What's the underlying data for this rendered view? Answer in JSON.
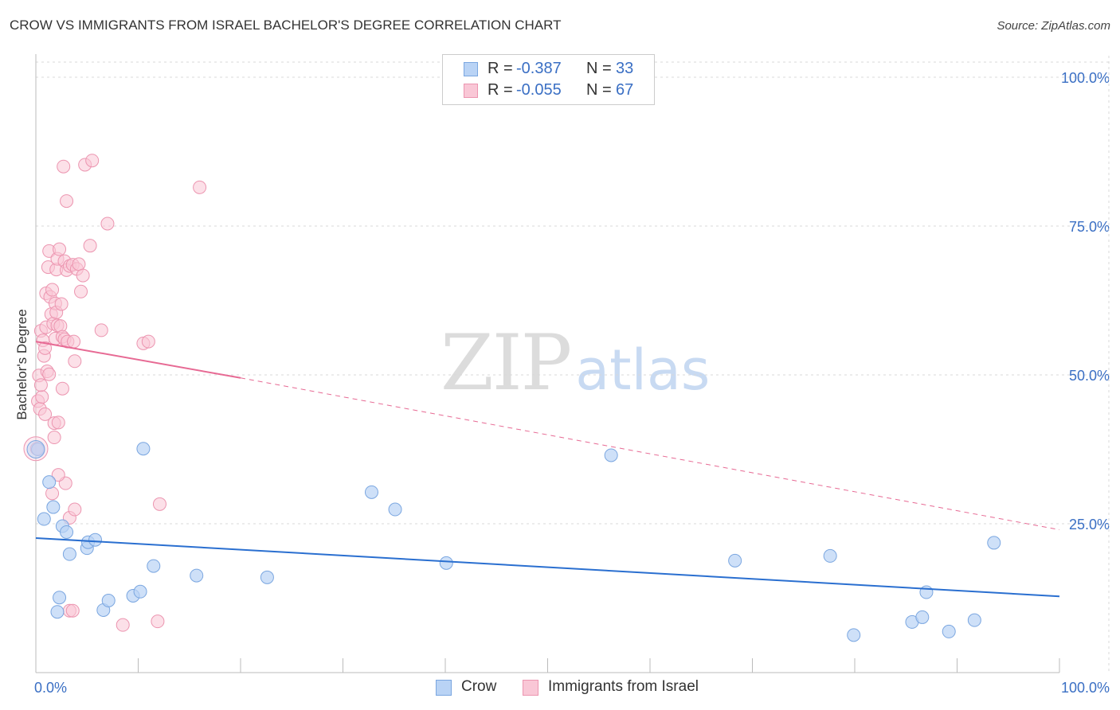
{
  "title": "CROW VS IMMIGRANTS FROM ISRAEL BACHELOR'S DEGREE CORRELATION CHART",
  "source": "Source: ZipAtlas.com",
  "watermark": {
    "zip": "ZIP",
    "atlas": "atlas"
  },
  "legend": {
    "r_label": "R =",
    "n_label": "N =",
    "series": [
      {
        "name": "Crow",
        "r": "-0.387",
        "n": "33"
      },
      {
        "name": "Immigrants from Israel",
        "r": "-0.055",
        "n": "67"
      }
    ]
  },
  "colors": {
    "crow_fill": "#b9d3f5",
    "crow_stroke": "#7aa6e0",
    "crow_line": "#2a6fd0",
    "israel_fill": "#f9c7d6",
    "israel_stroke": "#ec95b0",
    "israel_line": "#e76a94",
    "tick_label": "#3a6fc4",
    "grid": "#d8d8d8"
  },
  "chart_data": {
    "type": "scatter",
    "title": "CROW VS IMMIGRANTS FROM ISRAEL BACHELOR'S DEGREE CORRELATION CHART",
    "xlabel": "",
    "ylabel": "Bachelor's Degree",
    "xlim": [
      0,
      100
    ],
    "ylim": [
      0,
      100
    ],
    "x_tick_labels": [
      "0.0%",
      "100.0%"
    ],
    "y_ticks": [
      25,
      50,
      75,
      100
    ],
    "y_tick_labels": [
      "25.0%",
      "50.0%",
      "75.0%",
      "100.0%"
    ],
    "grid": true,
    "series": [
      {
        "name": "Crow",
        "points": [
          [
            0.2,
            37.5
          ],
          [
            0.8,
            25.8
          ],
          [
            1.3,
            32.0
          ],
          [
            1.7,
            27.8
          ],
          [
            2.1,
            10.2
          ],
          [
            2.3,
            12.6
          ],
          [
            2.6,
            24.6
          ],
          [
            3.0,
            23.6
          ],
          [
            3.3,
            19.9
          ],
          [
            5.0,
            20.9
          ],
          [
            5.1,
            21.9
          ],
          [
            5.8,
            22.3
          ],
          [
            6.6,
            10.5
          ],
          [
            7.1,
            12.1
          ],
          [
            9.5,
            12.9
          ],
          [
            10.2,
            13.6
          ],
          [
            10.5,
            37.6
          ],
          [
            11.5,
            17.9
          ],
          [
            15.7,
            16.3
          ],
          [
            22.6,
            16.0
          ],
          [
            32.8,
            30.3
          ],
          [
            35.1,
            27.4
          ],
          [
            40.1,
            18.4
          ],
          [
            56.2,
            36.5
          ],
          [
            68.3,
            18.8
          ],
          [
            77.6,
            19.6
          ],
          [
            79.9,
            6.3
          ],
          [
            85.6,
            8.5
          ],
          [
            86.6,
            9.3
          ],
          [
            87.0,
            13.5
          ],
          [
            89.2,
            6.9
          ],
          [
            91.7,
            8.8
          ],
          [
            93.6,
            21.8
          ]
        ],
        "trend": {
          "x0": 0,
          "y0": 22.6,
          "x1": 100,
          "y1": 12.8
        }
      },
      {
        "name": "Immigrants from Israel",
        "points": [
          [
            0.1,
            37.6
          ],
          [
            0.2,
            45.6
          ],
          [
            0.3,
            49.9
          ],
          [
            0.4,
            44.3
          ],
          [
            0.5,
            57.4
          ],
          [
            0.6,
            46.3
          ],
          [
            0.7,
            55.8
          ],
          [
            0.8,
            53.2
          ],
          [
            0.9,
            54.5
          ],
          [
            1.0,
            63.7
          ],
          [
            1.0,
            58.0
          ],
          [
            1.1,
            50.6
          ],
          [
            1.2,
            68.1
          ],
          [
            1.3,
            70.8
          ],
          [
            1.3,
            50.1
          ],
          [
            1.4,
            63.1
          ],
          [
            1.5,
            60.2
          ],
          [
            1.6,
            64.3
          ],
          [
            1.7,
            58.6
          ],
          [
            1.8,
            41.9
          ],
          [
            1.9,
            62.0
          ],
          [
            1.9,
            56.1
          ],
          [
            2.0,
            67.7
          ],
          [
            2.0,
            60.5
          ],
          [
            2.1,
            69.5
          ],
          [
            2.1,
            58.3
          ],
          [
            2.2,
            42.0
          ],
          [
            2.3,
            71.1
          ],
          [
            2.4,
            58.2
          ],
          [
            2.5,
            61.9
          ],
          [
            2.6,
            56.4
          ],
          [
            2.6,
            47.7
          ],
          [
            2.7,
            85.0
          ],
          [
            2.8,
            56.0
          ],
          [
            2.8,
            69.1
          ],
          [
            2.9,
            31.8
          ],
          [
            3.0,
            79.2
          ],
          [
            3.0,
            67.6
          ],
          [
            3.1,
            55.6
          ],
          [
            3.3,
            68.3
          ],
          [
            3.3,
            26.0
          ],
          [
            3.3,
            10.4
          ],
          [
            3.6,
            68.5
          ],
          [
            3.6,
            10.4
          ],
          [
            3.7,
            55.6
          ],
          [
            3.8,
            52.3
          ],
          [
            3.8,
            27.4
          ],
          [
            4.0,
            67.8
          ],
          [
            4.2,
            68.6
          ],
          [
            4.6,
            66.7
          ],
          [
            4.8,
            85.3
          ],
          [
            5.3,
            71.7
          ],
          [
            5.5,
            86.0
          ],
          [
            6.4,
            57.5
          ],
          [
            7.0,
            75.4
          ],
          [
            8.5,
            8.0
          ],
          [
            10.5,
            55.3
          ],
          [
            11.0,
            55.6
          ],
          [
            11.9,
            8.6
          ],
          [
            12.1,
            28.3
          ],
          [
            16.0,
            81.5
          ],
          [
            2.2,
            33.2
          ],
          [
            1.8,
            39.5
          ],
          [
            0.9,
            43.4
          ],
          [
            1.6,
            30.1
          ],
          [
            4.4,
            64.0
          ],
          [
            0.5,
            48.3
          ]
        ],
        "trend_solid": {
          "x0": 0,
          "y0": 55.6,
          "x1": 20,
          "y1": 49.5
        },
        "trend_dashed": {
          "x0": 20,
          "y0": 49.5,
          "x1": 100,
          "y1": 24.0
        }
      }
    ]
  }
}
